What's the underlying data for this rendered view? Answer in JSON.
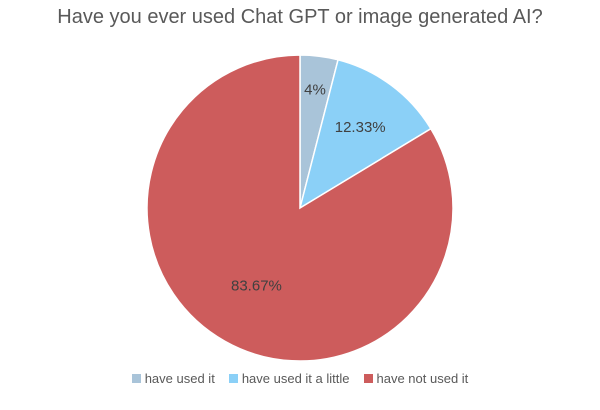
{
  "chart_data": {
    "type": "pie",
    "title": "Have you ever used Chat GPT or image generated AI?",
    "legend_position": "bottom",
    "slices": [
      {
        "label": "have used it",
        "value": 4,
        "display": "4%",
        "color": "#a9c4d9"
      },
      {
        "label": "have used it a little",
        "value": 12.33,
        "display": "12.33%",
        "color": "#8bd0f7"
      },
      {
        "label": "have not used it",
        "value": 83.67,
        "display": "83.67%",
        "color": "#cd5c5c"
      }
    ]
  }
}
